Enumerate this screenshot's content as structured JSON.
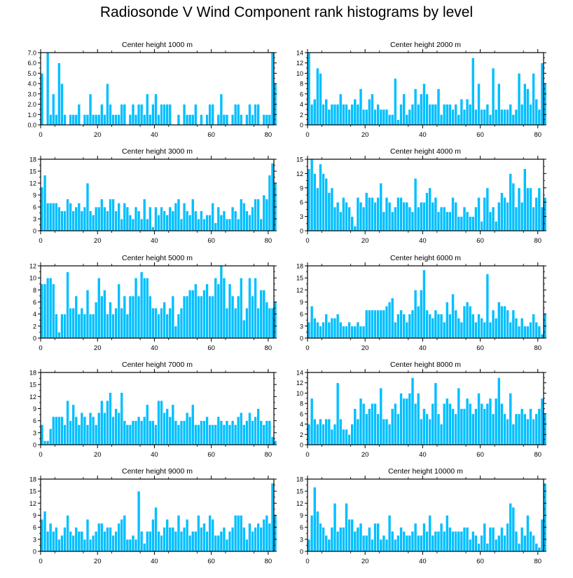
{
  "title": "Radiosonde V Wind Component rank histograms by level",
  "colors": {
    "bar_fill": "#00bfff",
    "bar_edge": "#ffffff",
    "axis": "#000000",
    "background": "#ffffff"
  },
  "chart_data": [
    {
      "type": "bar",
      "title": "Center height 1000 m",
      "xlabel": "",
      "ylabel": "",
      "xlim": [
        0,
        82
      ],
      "ylim": [
        0,
        7
      ],
      "yticks": [
        0,
        1,
        2,
        3,
        4,
        5,
        6,
        7
      ],
      "ytick_labels": [
        "0.0",
        "1.0",
        "2.0",
        "3.0",
        "4.0",
        "5.0",
        "6.0",
        "7.0"
      ],
      "xticks": [
        0,
        20,
        40,
        60,
        80
      ],
      "grid": false,
      "values": [
        5,
        0,
        7,
        1,
        3,
        1,
        6,
        4,
        1,
        0,
        1,
        1,
        1,
        2,
        0,
        1,
        1,
        3,
        1,
        1,
        1,
        2,
        1,
        4,
        2,
        1,
        1,
        1,
        2,
        2,
        0,
        1,
        2,
        1,
        2,
        2,
        1,
        3,
        1,
        2,
        3,
        1,
        2,
        2,
        2,
        2,
        0,
        0,
        1,
        0,
        2,
        1,
        1,
        1,
        2,
        0,
        1,
        0,
        1,
        2,
        2,
        0,
        1,
        3,
        1,
        1,
        0,
        1,
        2,
        2,
        1,
        0,
        1,
        2,
        1,
        2,
        2,
        0,
        1,
        1,
        1,
        7,
        4
      ]
    },
    {
      "type": "bar",
      "title": "Center height 2000 m",
      "xlabel": "",
      "ylabel": "",
      "xlim": [
        0,
        82
      ],
      "ylim": [
        0,
        14
      ],
      "yticks": [
        0,
        2,
        4,
        6,
        8,
        10,
        12,
        14
      ],
      "ytick_labels": [
        "0",
        "2",
        "4",
        "6",
        "8",
        "10",
        "12",
        "14"
      ],
      "xticks": [
        0,
        20,
        40,
        60,
        80
      ],
      "grid": false,
      "values": [
        14,
        4,
        5,
        11,
        10,
        4,
        5,
        3,
        4,
        4,
        4,
        6,
        4,
        4,
        3,
        4,
        5,
        4,
        7,
        3,
        3,
        5,
        6,
        3,
        4,
        3,
        3,
        3,
        2,
        2,
        9,
        1,
        4,
        6,
        2,
        3,
        4,
        7,
        4,
        6,
        8,
        6,
        4,
        4,
        4,
        7,
        2,
        4,
        4,
        4,
        3,
        4,
        2,
        5,
        3,
        5,
        4,
        13,
        3,
        8,
        3,
        3,
        4,
        2,
        11,
        3,
        8,
        3,
        3,
        3,
        4,
        2,
        3,
        10,
        4,
        8,
        7,
        4,
        10,
        5,
        3,
        12,
        8
      ]
    },
    {
      "type": "bar",
      "title": "Center height 3000 m",
      "xlabel": "",
      "ylabel": "",
      "xlim": [
        0,
        82
      ],
      "ylim": [
        0,
        18
      ],
      "yticks": [
        0,
        3,
        6,
        9,
        12,
        15,
        18
      ],
      "ytick_labels": [
        "0",
        "3",
        "6",
        "9",
        "12",
        "15",
        "18"
      ],
      "xticks": [
        0,
        20,
        40,
        60,
        80
      ],
      "grid": false,
      "values": [
        11,
        14,
        7,
        7,
        7,
        7,
        6,
        5,
        5,
        8,
        7,
        5,
        6,
        7,
        5,
        6,
        12,
        5,
        4,
        6,
        6,
        8,
        6,
        5,
        8,
        8,
        5,
        7,
        3,
        7,
        6,
        4,
        3,
        6,
        5,
        3,
        8,
        3,
        6,
        1,
        6,
        4,
        6,
        5,
        4,
        6,
        5,
        7,
        8,
        3,
        7,
        5,
        4,
        8,
        5,
        3,
        5,
        3,
        4,
        4,
        7,
        2,
        6,
        4,
        5,
        3,
        3,
        6,
        5,
        3,
        8,
        7,
        5,
        4,
        6,
        8,
        8,
        3,
        9,
        8,
        14,
        17,
        12
      ]
    },
    {
      "type": "bar",
      "title": "Center height 4000 m",
      "xlabel": "",
      "ylabel": "",
      "xlim": [
        0,
        82
      ],
      "ylim": [
        0,
        15
      ],
      "yticks": [
        0,
        3,
        6,
        9,
        12,
        15
      ],
      "ytick_labels": [
        "0",
        "3",
        "6",
        "9",
        "12",
        "15"
      ],
      "xticks": [
        0,
        20,
        40,
        60,
        80
      ],
      "grid": false,
      "values": [
        13,
        15,
        12,
        9,
        14,
        12,
        11,
        8,
        9,
        5,
        6,
        4,
        7,
        6,
        5,
        3,
        1,
        7,
        6,
        5,
        8,
        7,
        7,
        6,
        7,
        10,
        4,
        7,
        6,
        4,
        5,
        7,
        7,
        6,
        6,
        5,
        4,
        11,
        5,
        6,
        6,
        8,
        9,
        6,
        7,
        4,
        5,
        5,
        4,
        4,
        7,
        6,
        3,
        3,
        5,
        4,
        3,
        3,
        5,
        7,
        2,
        7,
        9,
        4,
        5,
        2,
        6,
        8,
        7,
        6,
        12,
        10,
        5,
        9,
        6,
        13,
        9,
        9,
        5,
        7,
        9,
        5,
        7
      ]
    },
    {
      "type": "bar",
      "title": "Center height 5000 m",
      "xlabel": "",
      "ylabel": "",
      "xlim": [
        0,
        82
      ],
      "ylim": [
        0,
        12
      ],
      "yticks": [
        0,
        2,
        4,
        6,
        8,
        10,
        12
      ],
      "ytick_labels": [
        "0",
        "2",
        "4",
        "6",
        "8",
        "10",
        "12"
      ],
      "xticks": [
        0,
        20,
        40,
        60,
        80
      ],
      "grid": false,
      "values": [
        9,
        9,
        10,
        10,
        9,
        4,
        1,
        4,
        4,
        11,
        5,
        5,
        7,
        4,
        5,
        4,
        8,
        4,
        4,
        6,
        10,
        7,
        8,
        4,
        6,
        4,
        5,
        9,
        5,
        7,
        4,
        7,
        7,
        10,
        7,
        11,
        10,
        10,
        7,
        5,
        5,
        4,
        5,
        6,
        4,
        5,
        7,
        2,
        4,
        5,
        7,
        7,
        8,
        8,
        9,
        7,
        7,
        8,
        9,
        7,
        7,
        10,
        9,
        12,
        10,
        5,
        9,
        7,
        5,
        7,
        10,
        3,
        5,
        10,
        7,
        10,
        5,
        8,
        8,
        6,
        5,
        5,
        6
      ]
    },
    {
      "type": "bar",
      "title": "Center height 6000 m",
      "xlabel": "",
      "ylabel": "",
      "xlim": [
        0,
        82
      ],
      "ylim": [
        0,
        18
      ],
      "yticks": [
        0,
        3,
        6,
        9,
        12,
        15,
        18
      ],
      "ytick_labels": [
        "0",
        "3",
        "6",
        "9",
        "12",
        "15",
        "18"
      ],
      "xticks": [
        0,
        20,
        40,
        60,
        80
      ],
      "grid": false,
      "values": [
        4,
        8,
        5,
        4,
        3,
        4,
        6,
        4,
        5,
        5,
        6,
        4,
        3,
        3,
        4,
        3,
        3,
        4,
        3,
        3,
        7,
        7,
        7,
        7,
        7,
        7,
        7,
        8,
        9,
        10,
        4,
        6,
        7,
        6,
        4,
        6,
        7,
        12,
        8,
        12,
        17,
        7,
        6,
        5,
        7,
        6,
        6,
        4,
        9,
        6,
        11,
        7,
        5,
        4,
        8,
        9,
        8,
        6,
        4,
        6,
        5,
        4,
        16,
        4,
        7,
        5,
        9,
        8,
        8,
        7,
        4,
        7,
        5,
        3,
        5,
        3,
        3,
        4,
        6,
        4,
        3,
        1,
        6
      ]
    },
    {
      "type": "bar",
      "title": "Center height 7000 m",
      "xlabel": "",
      "ylabel": "",
      "xlim": [
        0,
        82
      ],
      "ylim": [
        0,
        18
      ],
      "yticks": [
        0,
        3,
        6,
        9,
        12,
        15,
        18
      ],
      "ytick_labels": [
        "0",
        "3",
        "6",
        "9",
        "12",
        "15",
        "18"
      ],
      "xticks": [
        0,
        20,
        40,
        60,
        80
      ],
      "grid": false,
      "values": [
        5,
        1,
        1,
        4,
        7,
        7,
        7,
        7,
        5,
        11,
        6,
        10,
        7,
        5,
        8,
        7,
        5,
        8,
        7,
        5,
        8,
        11,
        8,
        11,
        13,
        7,
        9,
        8,
        13,
        6,
        5,
        5,
        6,
        6,
        7,
        6,
        7,
        10,
        6,
        6,
        5,
        11,
        11,
        8,
        9,
        7,
        10,
        6,
        5,
        6,
        6,
        8,
        7,
        10,
        5,
        5,
        6,
        6,
        7,
        5,
        5,
        5,
        7,
        6,
        5,
        6,
        5,
        6,
        5,
        7,
        8,
        5,
        6,
        8,
        6,
        7,
        9,
        6,
        5,
        6,
        6,
        2,
        1
      ]
    },
    {
      "type": "bar",
      "title": "Center height 8000 m",
      "xlabel": "",
      "ylabel": "",
      "xlim": [
        0,
        82
      ],
      "ylim": [
        0,
        14
      ],
      "yticks": [
        0,
        2,
        4,
        6,
        8,
        10,
        12,
        14
      ],
      "ytick_labels": [
        "0",
        "2",
        "4",
        "6",
        "8",
        "10",
        "12",
        "14"
      ],
      "xticks": [
        0,
        20,
        40,
        60,
        80
      ],
      "grid": false,
      "values": [
        4,
        9,
        5,
        4,
        5,
        4,
        5,
        5,
        3,
        4,
        12,
        5,
        3,
        3,
        2,
        4,
        7,
        5,
        9,
        8,
        6,
        7,
        8,
        8,
        6,
        11,
        5,
        5,
        4,
        7,
        8,
        6,
        10,
        9,
        9,
        10,
        13,
        8,
        10,
        5,
        7,
        6,
        5,
        8,
        12,
        6,
        4,
        8,
        9,
        8,
        7,
        6,
        11,
        7,
        7,
        9,
        8,
        6,
        7,
        10,
        8,
        7,
        8,
        9,
        6,
        9,
        13,
        8,
        6,
        5,
        10,
        4,
        6,
        6,
        7,
        6,
        5,
        7,
        5,
        6,
        7,
        9,
        6
      ]
    },
    {
      "type": "bar",
      "title": "Center height 9000 m",
      "xlabel": "",
      "ylabel": "",
      "xlim": [
        0,
        82
      ],
      "ylim": [
        0,
        18
      ],
      "yticks": [
        0,
        3,
        6,
        9,
        12,
        15,
        18
      ],
      "ytick_labels": [
        "0",
        "3",
        "6",
        "9",
        "12",
        "15",
        "18"
      ],
      "xticks": [
        0,
        20,
        40,
        60,
        80
      ],
      "grid": false,
      "values": [
        8,
        10,
        5,
        7,
        5,
        6,
        3,
        4,
        6,
        9,
        5,
        4,
        6,
        5,
        5,
        3,
        8,
        3,
        4,
        5,
        7,
        7,
        5,
        6,
        6,
        4,
        5,
        7,
        8,
        9,
        3,
        3,
        4,
        3,
        15,
        5,
        2,
        5,
        5,
        8,
        11,
        5,
        4,
        6,
        8,
        6,
        6,
        5,
        9,
        5,
        6,
        8,
        4,
        5,
        5,
        9,
        6,
        7,
        5,
        9,
        8,
        4,
        4,
        5,
        6,
        3,
        5,
        6,
        9,
        9,
        9,
        6,
        3,
        7,
        5,
        6,
        7,
        6,
        8,
        9,
        7,
        17,
        9
      ]
    },
    {
      "type": "bar",
      "title": "Center height 10000 m",
      "xlabel": "",
      "ylabel": "",
      "xlim": [
        0,
        82
      ],
      "ylim": [
        0,
        18
      ],
      "yticks": [
        0,
        3,
        6,
        9,
        12,
        15,
        18
      ],
      "ytick_labels": [
        "0",
        "3",
        "6",
        "9",
        "12",
        "15",
        "18"
      ],
      "xticks": [
        0,
        20,
        40,
        60,
        80
      ],
      "grid": false,
      "values": [
        3,
        9,
        16,
        10,
        7,
        6,
        4,
        3,
        6,
        12,
        5,
        6,
        6,
        12,
        8,
        8,
        5,
        6,
        7,
        4,
        4,
        6,
        3,
        7,
        7,
        3,
        4,
        3,
        9,
        5,
        3,
        4,
        6,
        5,
        4,
        4,
        5,
        7,
        4,
        4,
        7,
        5,
        9,
        4,
        5,
        5,
        7,
        5,
        9,
        6,
        5,
        5,
        5,
        5,
        6,
        6,
        3,
        5,
        4,
        2,
        4,
        7,
        2,
        6,
        6,
        3,
        4,
        6,
        4,
        7,
        12,
        11,
        5,
        2,
        6,
        4,
        9,
        5,
        4,
        2,
        1,
        8,
        17
      ]
    }
  ]
}
